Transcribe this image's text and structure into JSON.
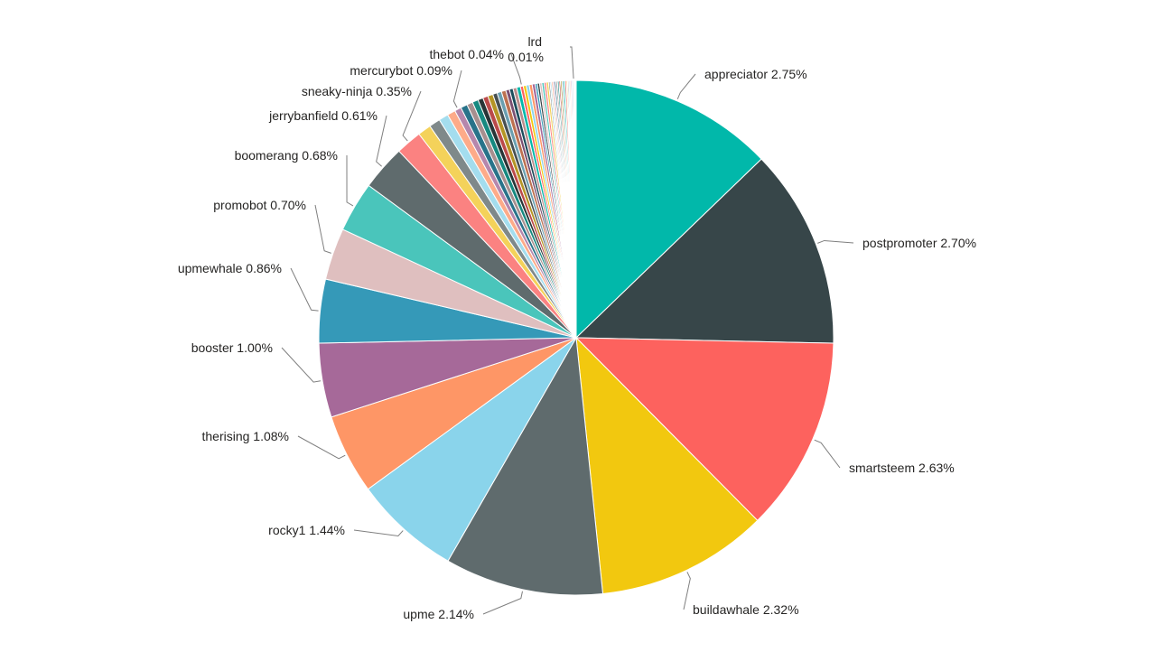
{
  "chart_data": {
    "type": "pie",
    "title": "",
    "slices": [
      {
        "label": "appreciator 2.75%",
        "value": 2.75,
        "color": "#01B8AA"
      },
      {
        "label": "postpromoter 2.70%",
        "value": 2.7,
        "color": "#374649"
      },
      {
        "label": "smartsteem 2.63%",
        "value": 2.63,
        "color": "#FD625E"
      },
      {
        "label": "buildawhale 2.32%",
        "value": 2.32,
        "color": "#F2C80F"
      },
      {
        "label": "upme 2.14%",
        "value": 2.14,
        "color": "#5F6B6D"
      },
      {
        "label": "rocky1 1.44%",
        "value": 1.44,
        "color": "#8AD4EB"
      },
      {
        "label": "therising 1.08%",
        "value": 1.08,
        "color": "#FE9666"
      },
      {
        "label": "booster 1.00%",
        "value": 1.0,
        "color": "#A66999"
      },
      {
        "label": "upmewhale 0.86%",
        "value": 0.86,
        "color": "#3599B8"
      },
      {
        "label": "promobot 0.70%",
        "value": 0.7,
        "color": "#DFBFBF"
      },
      {
        "label": "boomerang 0.68%",
        "value": 0.68,
        "color": "#4AC5BB"
      },
      {
        "label": "jerrybanfield 0.61%",
        "value": 0.61,
        "color": "#5F6B6D"
      },
      {
        "label": "sneaky-ninja 0.35%",
        "value": 0.35,
        "color": "#FB8281"
      },
      {
        "label": "",
        "value": 0.18,
        "color": "#F4D25A"
      },
      {
        "label": "",
        "value": 0.15,
        "color": "#7F898A"
      },
      {
        "label": "",
        "value": 0.13,
        "color": "#A4DDEE"
      },
      {
        "label": "",
        "value": 0.11,
        "color": "#FDAB89"
      },
      {
        "label": "mercurybot 0.09%",
        "value": 0.09,
        "color": "#B687AC"
      },
      {
        "label": "",
        "value": 0.09,
        "color": "#28738A"
      },
      {
        "label": "",
        "value": 0.08,
        "color": "#A78F8F"
      },
      {
        "label": "",
        "value": 0.08,
        "color": "#168980"
      },
      {
        "label": "",
        "value": 0.07,
        "color": "#293537"
      },
      {
        "label": "",
        "value": 0.07,
        "color": "#BB4A4A"
      },
      {
        "label": "",
        "value": 0.07,
        "color": "#B59525"
      },
      {
        "label": "",
        "value": 0.06,
        "color": "#475052"
      },
      {
        "label": "",
        "value": 0.06,
        "color": "#6A9FB0"
      },
      {
        "label": "",
        "value": 0.06,
        "color": "#BD7150"
      },
      {
        "label": "",
        "value": 0.05,
        "color": "#7B4F71"
      },
      {
        "label": "",
        "value": 0.05,
        "color": "#1B4D5C"
      },
      {
        "label": "",
        "value": 0.05,
        "color": "#B98C8C"
      },
      {
        "label": "",
        "value": 0.05,
        "color": "#01B8AA"
      },
      {
        "label": "thebot 0.04%",
        "value": 0.04,
        "color": "#FD625E"
      },
      {
        "label": "",
        "value": 0.04,
        "color": "#F2C80F"
      },
      {
        "label": "",
        "value": 0.04,
        "color": "#8AD4EB"
      },
      {
        "label": "",
        "value": 0.04,
        "color": "#FE9666"
      },
      {
        "label": "",
        "value": 0.04,
        "color": "#A66999"
      },
      {
        "label": "",
        "value": 0.03,
        "color": "#3599B8"
      },
      {
        "label": "",
        "value": 0.03,
        "color": "#374649"
      },
      {
        "label": "",
        "value": 0.03,
        "color": "#DFBFBF"
      },
      {
        "label": "",
        "value": 0.03,
        "color": "#4AC5BB"
      },
      {
        "label": "",
        "value": 0.03,
        "color": "#FB8281"
      },
      {
        "label": "",
        "value": 0.03,
        "color": "#F4D25A"
      },
      {
        "label": "",
        "value": 0.02,
        "color": "#7F898A"
      },
      {
        "label": "",
        "value": 0.02,
        "color": "#A4DDEE"
      },
      {
        "label": "",
        "value": 0.02,
        "color": "#FDAB89"
      },
      {
        "label": "",
        "value": 0.02,
        "color": "#B687AC"
      },
      {
        "label": "",
        "value": 0.02,
        "color": "#28738A"
      },
      {
        "label": "",
        "value": 0.02,
        "color": "#A78F8F"
      },
      {
        "label": "",
        "value": 0.02,
        "color": "#168980"
      },
      {
        "label": "",
        "value": 0.02,
        "color": "#BB4A4A"
      },
      {
        "label": "",
        "value": 0.02,
        "color": "#B59525"
      },
      {
        "label": "",
        "value": 0.02,
        "color": "#6A9FB0"
      },
      {
        "label": "",
        "value": 0.02,
        "color": "#01B8AA"
      },
      {
        "label": "",
        "value": 0.02,
        "color": "#FD625E"
      },
      {
        "label": "",
        "value": 0.015,
        "color": "#F2C80F"
      },
      {
        "label": "",
        "value": 0.015,
        "color": "#5F6B6D"
      },
      {
        "label": "",
        "value": 0.015,
        "color": "#8AD4EB"
      },
      {
        "label": "",
        "value": 0.015,
        "color": "#FE9666"
      },
      {
        "label": "",
        "value": 0.015,
        "color": "#A66999"
      },
      {
        "label": "",
        "value": 0.015,
        "color": "#3599B8"
      },
      {
        "label": "lrd 0.01%",
        "value": 0.01,
        "color": "#DFBFBF"
      },
      {
        "label": "",
        "value": 0.01,
        "color": "#4AC5BB"
      },
      {
        "label": "",
        "value": 0.01,
        "color": "#F4D25A"
      },
      {
        "label": "",
        "value": 0.01,
        "color": "#7F898A"
      }
    ]
  }
}
